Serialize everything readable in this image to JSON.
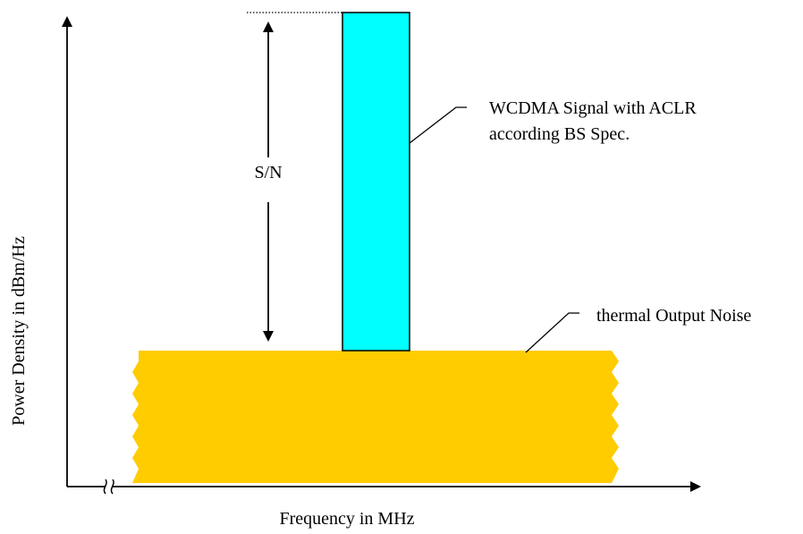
{
  "labels": {
    "y_axis": "Power Density in dBm/Hz",
    "x_axis": "Frequency in MHz",
    "signal_to_noise": "S/N",
    "signal_line1": "WCDMA Signal with ACLR",
    "signal_line2": "according BS Spec.",
    "noise": "thermal Output Noise"
  },
  "colors": {
    "signal_fill": "#00FFFF",
    "noise_fill": "#FFCC00",
    "line": "#000000",
    "background": "#FFFFFF"
  }
}
